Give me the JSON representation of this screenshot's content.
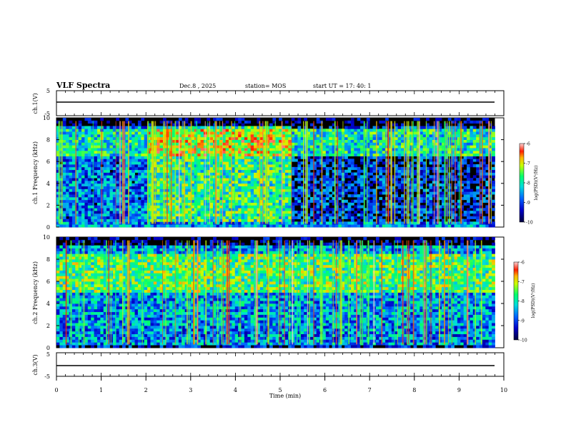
{
  "header": {
    "title": "VLF Spectra",
    "date": "Dec.8 , 2025",
    "station": "station= MOS",
    "start": "start  UT =   17: 40: 1"
  },
  "colors": {
    "background": "#000000",
    "spectrum_low": "#000080",
    "spectrum_mid": "#00ff80",
    "spectrum_high": "#ff0000"
  },
  "chart_data": [
    {
      "type": "line",
      "panel": "ch1-waveform",
      "ylabel": "ch.1(V)",
      "ylim": [
        -5,
        5
      ],
      "yticks": [
        "5",
        "-5"
      ],
      "x": [
        0,
        9.8
      ],
      "y": [
        0,
        0
      ]
    },
    {
      "type": "heatmap",
      "panel": "ch1-spectrogram",
      "ylabel": "ch.1 Frequency (kHz)",
      "ylim": [
        0,
        10
      ],
      "yticks": [
        "0",
        "2",
        "4",
        "6",
        "8",
        "10"
      ],
      "xlim": [
        0,
        10
      ],
      "data_end_min": 9.8,
      "colorbar": {
        "label": "log(PSD)(V²/Hz)",
        "range": [
          -10,
          -6
        ],
        "ticks": [
          "-6",
          "-7",
          "-8",
          "-9",
          "-10"
        ]
      }
    },
    {
      "type": "heatmap",
      "panel": "ch2-spectrogram",
      "ylabel": "ch.2 Frequency (kHz)",
      "ylim": [
        0,
        10
      ],
      "yticks": [
        "0",
        "2",
        "4",
        "6",
        "8",
        "10"
      ],
      "xlim": [
        0,
        10
      ],
      "data_end_min": 9.8,
      "colorbar": {
        "label": "log(PSD)(V²/Hz)",
        "range": [
          -10,
          -6
        ],
        "ticks": [
          "-6",
          "-7",
          "-8",
          "-9",
          "-10"
        ]
      }
    },
    {
      "type": "line",
      "panel": "ch3-waveform",
      "ylabel": "ch.3(V)",
      "ylim": [
        -5,
        5
      ],
      "yticks": [
        "5",
        "-5"
      ],
      "x": [
        0,
        9.8
      ],
      "y": [
        0,
        0
      ]
    }
  ],
  "x_axis": {
    "label": "Time (min)",
    "range": [
      0,
      10
    ],
    "ticks": [
      "0",
      "1",
      "2",
      "3",
      "4",
      "5",
      "6",
      "7",
      "8",
      "9",
      "10"
    ]
  }
}
